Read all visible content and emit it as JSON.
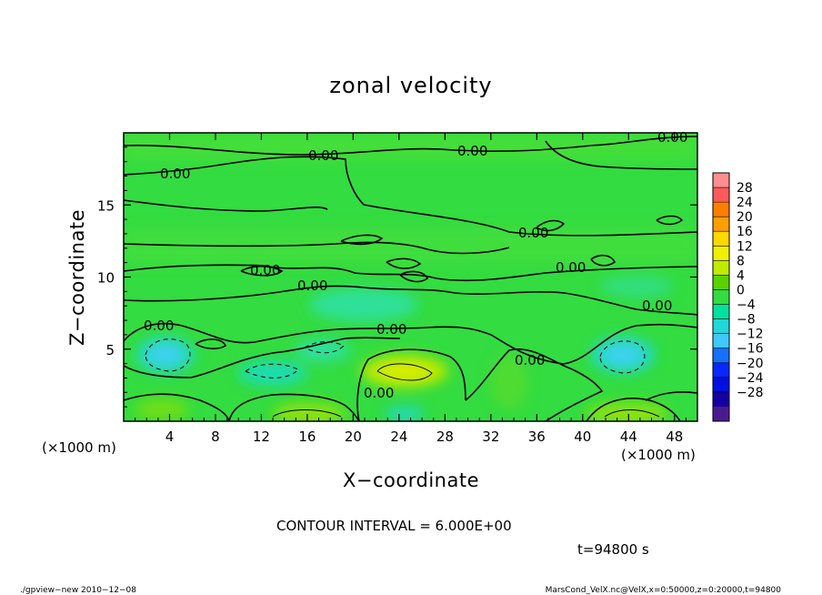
{
  "chart_data": {
    "type": "heatmap",
    "title": "zonal velocity",
    "xlabel": "X−coordinate",
    "ylabel": "Z−coordinate",
    "x_unit_label": "(×1000 m)",
    "z_unit_label": "(×1000 m)",
    "x_range": [
      0,
      50
    ],
    "z_range": [
      0,
      20
    ],
    "x_ticks": [
      4,
      8,
      12,
      16,
      20,
      24,
      28,
      32,
      36,
      40,
      44,
      48
    ],
    "z_ticks": [
      5,
      10,
      15
    ],
    "colorbar_ticks": [
      "28",
      "24",
      "20",
      "16",
      "12",
      "8",
      "4",
      "0",
      "−4",
      "−8",
      "−12",
      "−16",
      "−20",
      "−24",
      "−28"
    ],
    "colorbar_colors": [
      "#ff8e8e",
      "#ff5a5a",
      "#ff7e00",
      "#ff9e00",
      "#ffd800",
      "#f0f000",
      "#c0ec00",
      "#5ad200",
      "#33dc40",
      "#00e0a0",
      "#20d8d8",
      "#40c8ff",
      "#1470ff",
      "#0828ff",
      "#0010e0",
      "#1400a0",
      "#4c1a90"
    ],
    "contour_labels": [
      "0.00",
      "0.00",
      "0.00",
      "0.00",
      "0.00",
      "0.00",
      "0.00",
      "0.00",
      "0.00",
      "0.00",
      "0.00",
      "0.00",
      "0.00"
    ],
    "contour_interval_text": "CONTOUR INTERVAL = 6.000E+00",
    "time_text": "t=94800 s",
    "footer_left": "./gpview−new  2010−12−08",
    "footer_right": "MarsCond_VelX.nc@VelX,x=0:50000,z=0:20000,t=94800"
  }
}
